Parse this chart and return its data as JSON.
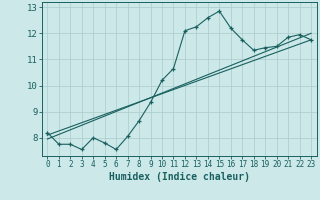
{
  "xlabel": "Humidex (Indice chaleur)",
  "xlim": [
    -0.5,
    23.5
  ],
  "ylim": [
    7.3,
    13.2
  ],
  "yticks": [
    8,
    9,
    10,
    11,
    12,
    13
  ],
  "xticks": [
    0,
    1,
    2,
    3,
    4,
    5,
    6,
    7,
    8,
    9,
    10,
    11,
    12,
    13,
    14,
    15,
    16,
    17,
    18,
    19,
    20,
    21,
    22,
    23
  ],
  "bg_color": "#cce8e8",
  "grid_color": "#aacccc",
  "line_color": "#1a6060",
  "line1_x": [
    0,
    1,
    2,
    3,
    4,
    5,
    6,
    7,
    8,
    9,
    10,
    11,
    12,
    13,
    14,
    15,
    16,
    17,
    18,
    19,
    20,
    21,
    22,
    23
  ],
  "line1_y": [
    8.2,
    7.75,
    7.75,
    7.55,
    8.0,
    7.8,
    7.55,
    8.05,
    8.65,
    9.35,
    10.2,
    10.65,
    12.1,
    12.25,
    12.6,
    12.85,
    12.2,
    11.75,
    11.35,
    11.45,
    11.5,
    11.85,
    11.95,
    11.75
  ],
  "line2_x": [
    0,
    23
  ],
  "line2_y": [
    8.1,
    11.75
  ],
  "line3_x": [
    0,
    23
  ],
  "line3_y": [
    7.95,
    12.0
  ]
}
